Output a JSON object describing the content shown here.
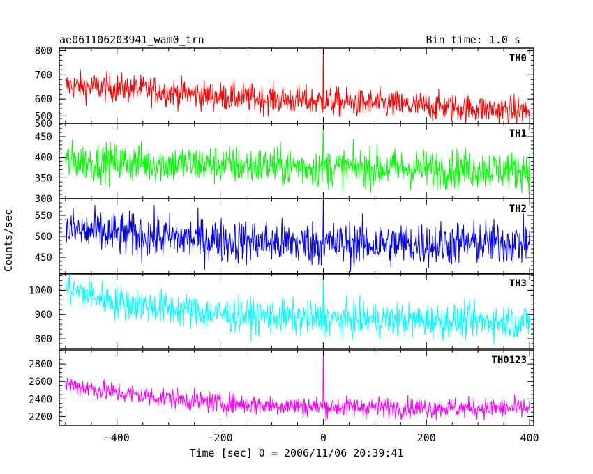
{
  "title_left": "ae061106203941_wam0_trn",
  "title_right": "Bin time: 1.0 s",
  "ylabel": "Counts/sec",
  "xlabel": "Time [sec] 0 = 2006/11/06 20:39:41",
  "x_tick_labels": [
    "−400",
    "−200",
    "0",
    "200",
    "400"
  ],
  "chart_data": {
    "type": "line",
    "x_range": [
      -512,
      408
    ],
    "x_major_ticks": [
      -400,
      -200,
      0,
      200,
      400
    ],
    "x_minor_step": 50,
    "bin_time": 1.0,
    "grid": false,
    "panels": [
      {
        "name": "TH0",
        "color": "#ff0000",
        "ylim": [
          500,
          810
        ],
        "y_ticks": [
          500,
          600,
          700,
          800
        ],
        "y_tick_labels": [
          "500",
          "600",
          "700",
          "800"
        ],
        "y_minor_step": 20,
        "trend": [
          [
            -500,
            655
          ],
          [
            -350,
            640
          ],
          [
            -200,
            610
          ],
          [
            0,
            590
          ],
          [
            200,
            570
          ],
          [
            400,
            550
          ]
        ],
        "noise": 30,
        "spike": {
          "x": 0,
          "peak": 810
        }
      },
      {
        "name": "TH1",
        "color": "#00ff00",
        "ylim": [
          300,
          482
        ],
        "y_ticks": [
          300,
          350,
          400,
          450,
          500
        ],
        "y_tick_labels": [
          "300",
          "350",
          "400",
          "450",
          "500"
        ],
        "y_minor_step": 10,
        "trend": [
          [
            -500,
            390
          ],
          [
            -300,
            385
          ],
          [
            0,
            375
          ],
          [
            200,
            372
          ],
          [
            400,
            370
          ]
        ],
        "noise": 24,
        "spike": {
          "x": 0,
          "peak": 480
        }
      },
      {
        "name": "TH2",
        "color": "#0000ff",
        "ylim": [
          410,
          590
        ],
        "y_ticks": [
          450,
          500,
          550
        ],
        "y_tick_labels": [
          "450",
          "500",
          "550"
        ],
        "y_minor_step": 10,
        "trend": [
          [
            -500,
            515
          ],
          [
            -400,
            505
          ],
          [
            -200,
            490
          ],
          [
            0,
            482
          ],
          [
            200,
            482
          ],
          [
            400,
            485
          ]
        ],
        "noise": 27,
        "spike": {
          "x": 0,
          "peak": 585
        }
      },
      {
        "name": "TH3",
        "color": "#00ffff",
        "ylim": [
          760,
          1070
        ],
        "y_ticks": [
          800,
          900,
          1000
        ],
        "y_tick_labels": [
          "800",
          "900",
          "1000"
        ],
        "y_minor_step": 20,
        "trend": [
          [
            -500,
            1010
          ],
          [
            -400,
            950
          ],
          [
            -200,
            900
          ],
          [
            0,
            880
          ],
          [
            200,
            875
          ],
          [
            400,
            870
          ]
        ],
        "noise": 36,
        "spike": {
          "x": 0,
          "peak": 1050
        }
      },
      {
        "name": "TH0123",
        "color": "#ff00ff",
        "ylim": [
          2100,
          2960
        ],
        "y_ticks": [
          2200,
          2400,
          2600,
          2800
        ],
        "y_tick_labels": [
          "2200",
          "2400",
          "2600",
          "2800"
        ],
        "y_minor_step": 50,
        "trend": [
          [
            -500,
            2570
          ],
          [
            -400,
            2470
          ],
          [
            -200,
            2350
          ],
          [
            0,
            2310
          ],
          [
            200,
            2300
          ],
          [
            400,
            2290
          ]
        ],
        "noise": 60,
        "spike": {
          "x": 0,
          "peak": 2950
        }
      }
    ]
  }
}
